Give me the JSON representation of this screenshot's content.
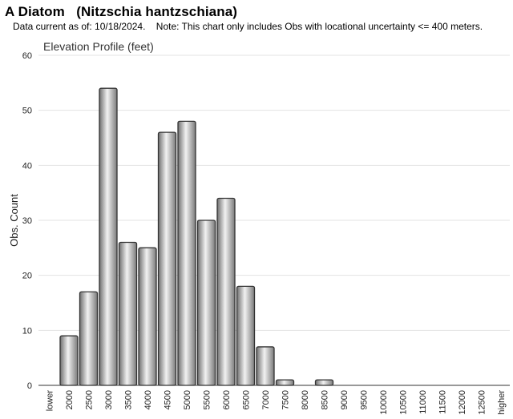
{
  "header": {
    "title": "A Diatom   (Nitzschia hantzschiana)",
    "note": "Data current as of: 10/18/2024.    Note: This chart only includes Obs with locational uncertainty <= 400 meters."
  },
  "chart_data": {
    "type": "bar",
    "title": "Elevation Profile (feet)",
    "xlabel": "",
    "ylabel": "Obs. Count",
    "ylim": [
      0,
      60
    ],
    "yticks": [
      0,
      10,
      20,
      30,
      40,
      50,
      60
    ],
    "grid": true,
    "categories": [
      "lower",
      "2000",
      "2500",
      "3000",
      "3500",
      "4000",
      "4500",
      "5000",
      "5500",
      "6000",
      "6500",
      "7000",
      "7500",
      "8000",
      "8500",
      "9000",
      "9500",
      "10000",
      "10500",
      "11000",
      "11500",
      "12000",
      "12500",
      "higher"
    ],
    "values": [
      0,
      9,
      17,
      54,
      26,
      25,
      46,
      48,
      30,
      34,
      18,
      7,
      1,
      0,
      1,
      0,
      0,
      0,
      0,
      0,
      0,
      0,
      0,
      0
    ],
    "bar_color": "#9a9a9a"
  }
}
